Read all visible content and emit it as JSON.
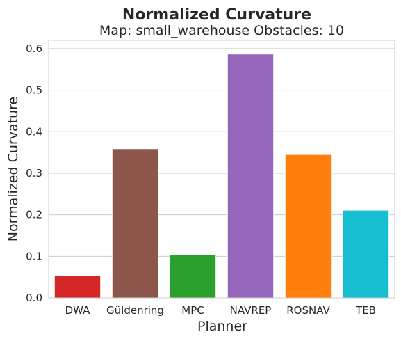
{
  "chart_data": {
    "type": "bar",
    "title": "Normalized Curvature",
    "subtitle": "Map: small_warehouse Obstacles: 10",
    "xlabel": "Planner",
    "ylabel": "Normalized Curvature",
    "categories": [
      "DWA",
      "Güldenring",
      "MPC",
      "NAVREP",
      "ROSNAV",
      "TEB"
    ],
    "values": [
      0.054,
      0.359,
      0.104,
      0.587,
      0.345,
      0.211
    ],
    "colors": [
      "#d62728",
      "#8c564b",
      "#2ca02c",
      "#9467bd",
      "#ff7f0e",
      "#17becf"
    ],
    "ylim": [
      0,
      0.62
    ],
    "yticks": [
      0.0,
      0.1,
      0.2,
      0.3,
      0.4,
      0.5,
      0.6
    ],
    "ytick_labels": [
      "0.0",
      "0.1",
      "0.2",
      "0.3",
      "0.4",
      "0.5",
      "0.6"
    ],
    "grid": true,
    "legend": "none"
  }
}
